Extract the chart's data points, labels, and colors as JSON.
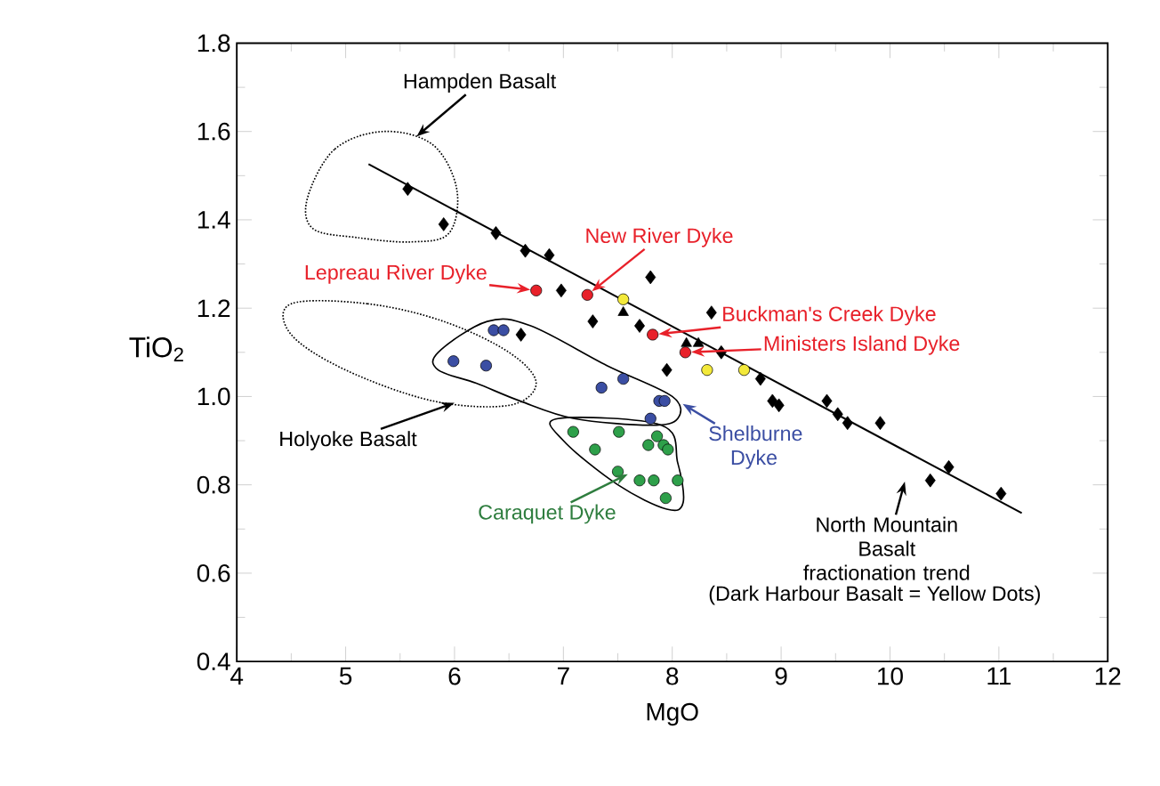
{
  "chart_data": {
    "type": "scatter",
    "xlabel": "MgO",
    "ylabel": "TiO$_{2}$",
    "xlim": [
      4,
      12
    ],
    "ylim": [
      0.4,
      1.8
    ],
    "xticks": [
      4,
      5,
      6,
      7,
      8,
      9,
      10,
      11,
      12
    ],
    "yticks": [
      0.4,
      0.6,
      0.8,
      {
        "value": 1.0,
        "label": "1.0"
      },
      1.2,
      1.4,
      1.6,
      1.8
    ],
    "series": [
      {
        "type": "line",
        "color": "#000000",
        "marker": "none",
        "x": [
          5.21,
          11.21
        ],
        "values": [
          1.526,
          0.736
        ]
      },
      {
        "color": "#000000",
        "marker": "diamond",
        "x": [
          5.57,
          5.9,
          6.38,
          6.65,
          6.87,
          6.98,
          7.8,
          7.27,
          6.61,
          7.7,
          7.95,
          8.36,
          8.45,
          8.81,
          8.92,
          8.98,
          9.42,
          9.52,
          9.61,
          9.91,
          10.37,
          10.54,
          11.02
        ],
        "values": [
          1.47,
          1.39,
          1.37,
          1.33,
          1.32,
          1.24,
          1.27,
          1.17,
          1.14,
          1.16,
          1.06,
          1.19,
          1.1,
          1.04,
          0.99,
          0.98,
          0.99,
          0.96,
          0.94,
          0.94,
          0.81,
          0.84,
          0.78
        ]
      },
      {
        "color": "#3b4ea3",
        "marker": "circle",
        "x": [
          6.36,
          6.45,
          5.99,
          6.29,
          7.35,
          7.55,
          7.88,
          7.93,
          7.8
        ],
        "values": [
          1.15,
          1.15,
          1.08,
          1.07,
          1.02,
          1.04,
          0.99,
          0.99,
          0.95
        ]
      },
      {
        "color": "#2ea04a",
        "marker": "circle",
        "x": [
          7.09,
          7.51,
          7.29,
          7.78,
          7.86,
          7.92,
          7.96,
          7.5,
          7.7,
          7.83,
          8.05,
          7.94
        ],
        "values": [
          0.92,
          0.92,
          0.88,
          0.89,
          0.91,
          0.89,
          0.88,
          0.83,
          0.81,
          0.81,
          0.81,
          0.77
        ]
      },
      {
        "color": "#e8212a",
        "marker": "circle",
        "x": [
          6.75,
          7.22,
          7.82,
          8.12
        ],
        "values": [
          1.24,
          1.23,
          1.14,
          1.1
        ]
      },
      {
        "color": "#f3e93a",
        "marker": "circle",
        "x": [
          7.55,
          8.32,
          8.66
        ],
        "values": [
          1.22,
          1.06,
          1.06
        ]
      },
      {
        "color": "#000000",
        "marker": "triangle",
        "x": [
          7.55,
          8.13,
          8.24
        ],
        "values": [
          1.19,
          1.12,
          1.12
        ]
      }
    ],
    "annotations": [
      "Hampden Basalt",
      {
        "text": "New River Dyke",
        "x": 7.22,
        "y": 1.23
      },
      {
        "text": "Lepreau River Dyke",
        "x": 6.75,
        "y": 1.24
      },
      "Buckman's Creek Dyke",
      "Ministers Island Dyke",
      "Holyoke Basalt",
      "Shelburne Dyke",
      "Caraquet Dyke",
      "North Mountain Basalt fractionation trend",
      "(Dark Harbour Basalt = Yellow Dots)"
    ]
  }
}
